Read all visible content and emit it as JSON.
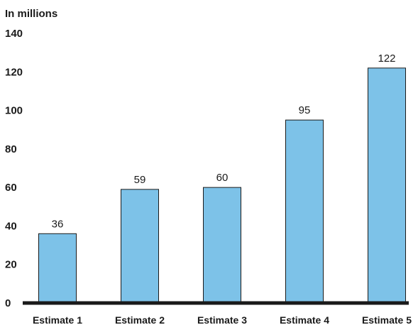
{
  "chart_data": {
    "type": "bar",
    "title": "",
    "unit_label": "In millions",
    "xlabel": "",
    "ylabel": "",
    "categories": [
      "Estimate 1",
      "Estimate 2",
      "Estimate 3",
      "Estimate 4",
      "Estimate 5"
    ],
    "values": [
      36,
      59,
      60,
      95,
      122
    ],
    "data_labels": [
      "36",
      "59",
      "60",
      "95",
      "122"
    ],
    "ylim": [
      0,
      140
    ],
    "yticks": [
      0,
      20,
      40,
      60,
      80,
      100,
      120,
      140
    ],
    "ytick_labels": [
      "0",
      "20",
      "40",
      "60",
      "80",
      "100",
      "120",
      "140"
    ],
    "grid": false,
    "legend": "none",
    "bar_color": "#7dc2e8",
    "axis_color": "#1a1a1a"
  }
}
